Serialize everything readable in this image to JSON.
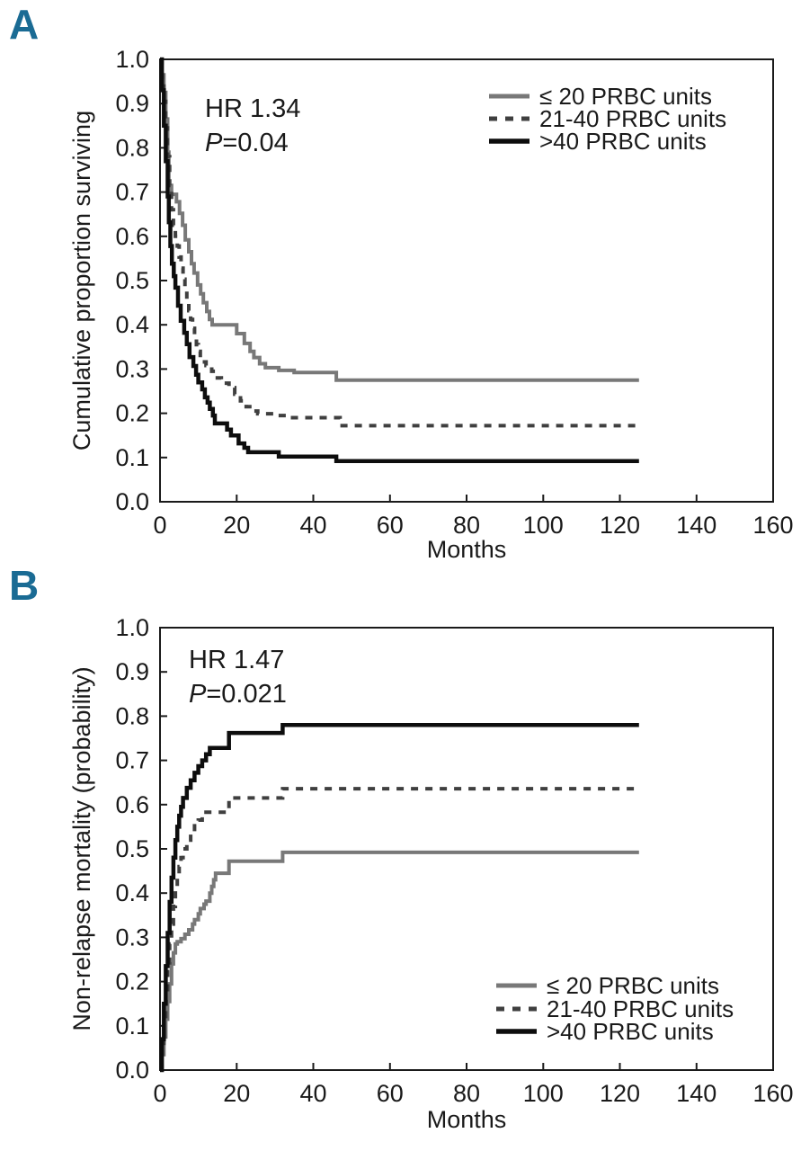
{
  "figure": {
    "background": "#ffffff",
    "panel_label_color": "#1a6b94",
    "axis_color": "#1a1a1a"
  },
  "chart_data": [
    {
      "panel_label": "A",
      "type": "line",
      "step": true,
      "title": "",
      "xlabel": "Months",
      "ylabel": "Cumulative proportion surviving",
      "xlim": [
        0,
        160
      ],
      "ylim": [
        0.0,
        1.0
      ],
      "xticks": [
        0,
        20,
        40,
        60,
        80,
        100,
        120,
        140,
        160
      ],
      "xtick_labels": [
        "0",
        "20",
        "40",
        "60",
        "80",
        "100",
        "120",
        "140",
        "160"
      ],
      "yticks": [
        0.0,
        0.1,
        0.2,
        0.3,
        0.4,
        0.5,
        0.6,
        0.7,
        0.8,
        0.9,
        1.0
      ],
      "ytick_labels": [
        "0.0",
        "0.1",
        "0.2",
        "0.3",
        "0.4",
        "0.5",
        "0.6",
        "0.7",
        "0.8",
        "0.9",
        "1.0"
      ],
      "grid": false,
      "legend_position": "top-right",
      "annotation": {
        "line1": "HR 1.34",
        "p_label": "P",
        "p_value": "=0.04"
      },
      "series": [
        {
          "name": "≤ 20 PRBC units",
          "color": "#787878",
          "dash": null,
          "width": 4,
          "points": [
            [
              0,
              1.0
            ],
            [
              0.5,
              0.965
            ],
            [
              1,
              0.925
            ],
            [
              1.5,
              0.865
            ],
            [
              2,
              0.79
            ],
            [
              2.3,
              0.715
            ],
            [
              3,
              0.695
            ],
            [
              4.3,
              0.678
            ],
            [
              5.1,
              0.652
            ],
            [
              5.9,
              0.625
            ],
            [
              6.6,
              0.592
            ],
            [
              7.5,
              0.565
            ],
            [
              8.2,
              0.538
            ],
            [
              8.9,
              0.517
            ],
            [
              9.8,
              0.49
            ],
            [
              10.6,
              0.47
            ],
            [
              11.3,
              0.45
            ],
            [
              12.2,
              0.43
            ],
            [
              12.9,
              0.412
            ],
            [
              13.6,
              0.4
            ],
            [
              20,
              0.38
            ],
            [
              22,
              0.358
            ],
            [
              23.5,
              0.34
            ],
            [
              24.5,
              0.326
            ],
            [
              26,
              0.312
            ],
            [
              27.5,
              0.303
            ],
            [
              31,
              0.297
            ],
            [
              35,
              0.292
            ],
            [
              46,
              0.275
            ],
            [
              125,
              0.275
            ]
          ]
        },
        {
          "name": "21-40 PRBC units",
          "color": "#3f3f3f",
          "dash": "8 8",
          "width": 4,
          "points": [
            [
              0,
              1.0
            ],
            [
              0.5,
              0.96
            ],
            [
              1,
              0.905
            ],
            [
              1.5,
              0.845
            ],
            [
              2,
              0.78
            ],
            [
              2.5,
              0.715
            ],
            [
              3,
              0.66
            ],
            [
              3.5,
              0.625
            ],
            [
              4,
              0.6
            ],
            [
              4.5,
              0.578
            ],
            [
              5,
              0.553
            ],
            [
              5.5,
              0.528
            ],
            [
              6,
              0.503
            ],
            [
              6.5,
              0.48
            ],
            [
              7,
              0.455
            ],
            [
              7.5,
              0.432
            ],
            [
              8,
              0.412
            ],
            [
              8.5,
              0.392
            ],
            [
              9,
              0.372
            ],
            [
              9.5,
              0.355
            ],
            [
              10,
              0.34
            ],
            [
              10.5,
              0.326
            ],
            [
              11,
              0.316
            ],
            [
              12,
              0.308
            ],
            [
              13.5,
              0.295
            ],
            [
              14.5,
              0.28
            ],
            [
              16,
              0.268
            ],
            [
              18,
              0.258
            ],
            [
              19.5,
              0.243
            ],
            [
              21,
              0.228
            ],
            [
              22.5,
              0.215
            ],
            [
              24,
              0.205
            ],
            [
              25.5,
              0.199
            ],
            [
              30,
              0.195
            ],
            [
              33,
              0.19
            ],
            [
              47,
              0.172
            ],
            [
              125,
              0.172
            ]
          ]
        },
        {
          "name": ">40 PRBC units",
          "color": "#0d0d0d",
          "dash": null,
          "width": 4.5,
          "points": [
            [
              0,
              1.0
            ],
            [
              0.5,
              0.93
            ],
            [
              1,
              0.85
            ],
            [
              1.5,
              0.77
            ],
            [
              2,
              0.69
            ],
            [
              2.3,
              0.632
            ],
            [
              2.7,
              0.578
            ],
            [
              3.1,
              0.538
            ],
            [
              3.6,
              0.51
            ],
            [
              4,
              0.484
            ],
            [
              4.7,
              0.443
            ],
            [
              5.4,
              0.409
            ],
            [
              6.3,
              0.382
            ],
            [
              7,
              0.356
            ],
            [
              7.7,
              0.327
            ],
            [
              8.7,
              0.307
            ],
            [
              9.4,
              0.287
            ],
            [
              10,
              0.27
            ],
            [
              11,
              0.254
            ],
            [
              11.7,
              0.236
            ],
            [
              12.4,
              0.224
            ],
            [
              13,
              0.21
            ],
            [
              13.8,
              0.195
            ],
            [
              14.3,
              0.177
            ],
            [
              17.5,
              0.163
            ],
            [
              18.5,
              0.15
            ],
            [
              20.5,
              0.132
            ],
            [
              22,
              0.122
            ],
            [
              23,
              0.112
            ],
            [
              31,
              0.102
            ],
            [
              46,
              0.092
            ],
            [
              125,
              0.092
            ]
          ]
        }
      ]
    },
    {
      "panel_label": "B",
      "type": "line",
      "step": true,
      "title": "",
      "xlabel": "Months",
      "ylabel": "Non-relapse mortality (probability)",
      "xlim": [
        0,
        160
      ],
      "ylim": [
        0.0,
        1.0
      ],
      "xticks": [
        0,
        20,
        40,
        60,
        80,
        100,
        120,
        140,
        160
      ],
      "xtick_labels": [
        "0",
        "20",
        "40",
        "60",
        "80",
        "100",
        "120",
        "140",
        "160"
      ],
      "yticks": [
        0.0,
        0.1,
        0.2,
        0.3,
        0.4,
        0.5,
        0.6,
        0.7,
        0.8,
        0.9,
        1.0
      ],
      "ytick_labels": [
        "0.0",
        "0.1",
        "0.2",
        "0.3",
        "0.4",
        "0.5",
        "0.6",
        "0.7",
        "0.8",
        "0.9",
        "1.0"
      ],
      "grid": false,
      "legend_position": "bottom-right",
      "annotation": {
        "line1": "HR 1.47",
        "p_label": "P",
        "p_value": "=0.021"
      },
      "series": [
        {
          "name": "≤ 20 PRBC units",
          "color": "#787878",
          "dash": null,
          "width": 4,
          "points": [
            [
              0,
              0.0
            ],
            [
              0.5,
              0.035
            ],
            [
              1,
              0.075
            ],
            [
              1.5,
              0.115
            ],
            [
              2,
              0.155
            ],
            [
              2.5,
              0.195
            ],
            [
              3,
              0.24
            ],
            [
              3.5,
              0.265
            ],
            [
              4,
              0.285
            ],
            [
              4.5,
              0.29
            ],
            [
              5.5,
              0.297
            ],
            [
              6.5,
              0.307
            ],
            [
              7.5,
              0.317
            ],
            [
              8.5,
              0.33
            ],
            [
              9,
              0.34
            ],
            [
              10,
              0.353
            ],
            [
              10.5,
              0.365
            ],
            [
              11.5,
              0.375
            ],
            [
              12,
              0.382
            ],
            [
              13,
              0.4
            ],
            [
              13.5,
              0.415
            ],
            [
              14,
              0.43
            ],
            [
              14.5,
              0.445
            ],
            [
              18,
              0.472
            ],
            [
              32,
              0.492
            ],
            [
              125,
              0.492
            ]
          ]
        },
        {
          "name": "21-40 PRBC units",
          "color": "#3f3f3f",
          "dash": "8 8",
          "width": 4,
          "points": [
            [
              0,
              0.0
            ],
            [
              0.5,
              0.05
            ],
            [
              1,
              0.11
            ],
            [
              1.5,
              0.17
            ],
            [
              2,
              0.23
            ],
            [
              2.5,
              0.285
            ],
            [
              3,
              0.33
            ],
            [
              3.5,
              0.37
            ],
            [
              4,
              0.405
            ],
            [
              4.5,
              0.435
            ],
            [
              5,
              0.46
            ],
            [
              5.5,
              0.48
            ],
            [
              6,
              0.5
            ],
            [
              7,
              0.52
            ],
            [
              8,
              0.537
            ],
            [
              9,
              0.552
            ],
            [
              10,
              0.565
            ],
            [
              11,
              0.575
            ],
            [
              12,
              0.583
            ],
            [
              18,
              0.615
            ],
            [
              32,
              0.636
            ],
            [
              125,
              0.636
            ]
          ]
        },
        {
          "name": ">40 PRBC units",
          "color": "#0d0d0d",
          "dash": null,
          "width": 4.5,
          "points": [
            [
              0,
              0.0
            ],
            [
              0.5,
              0.07
            ],
            [
              1,
              0.15
            ],
            [
              1.5,
              0.235
            ],
            [
              2,
              0.31
            ],
            [
              2.5,
              0.38
            ],
            [
              3,
              0.435
            ],
            [
              3.5,
              0.48
            ],
            [
              4,
              0.52
            ],
            [
              4.5,
              0.55
            ],
            [
              5,
              0.575
            ],
            [
              5.5,
              0.595
            ],
            [
              6,
              0.615
            ],
            [
              7,
              0.638
            ],
            [
              8,
              0.655
            ],
            [
              9,
              0.672
            ],
            [
              10,
              0.687
            ],
            [
              11,
              0.7
            ],
            [
              12,
              0.714
            ],
            [
              13,
              0.728
            ],
            [
              18,
              0.762
            ],
            [
              32,
              0.78
            ],
            [
              125,
              0.78
            ]
          ]
        }
      ]
    }
  ]
}
